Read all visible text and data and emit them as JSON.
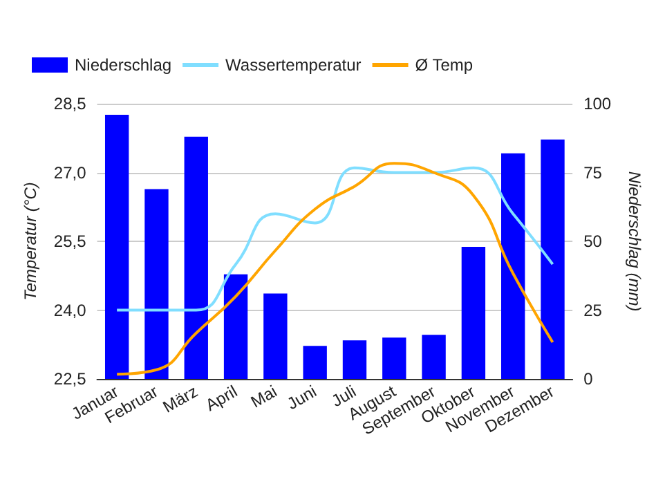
{
  "chart_data": {
    "type": "bar",
    "categories": [
      "Januar",
      "Februar",
      "März",
      "April",
      "Mai",
      "Juni",
      "Juli",
      "August",
      "September",
      "Oktober",
      "November",
      "Dezember"
    ],
    "series": [
      {
        "name": "Niederschlag",
        "axis": "y2",
        "color": "#0000ff",
        "values": [
          96,
          69,
          88,
          38,
          31,
          12,
          14,
          15,
          16,
          48,
          82,
          87
        ]
      },
      {
        "name": "Wassertemperatur",
        "type": "line",
        "color": "#80deff",
        "values": [
          24.0,
          24.0,
          24.0,
          25.0,
          26.1,
          25.9,
          27.1,
          27.0,
          27.0,
          27.1,
          26.1,
          25.0
        ]
      },
      {
        "name": "Ø Temp",
        "type": "line",
        "color": "#ffa500",
        "values": [
          22.6,
          22.7,
          23.5,
          24.3,
          25.3,
          26.2,
          26.7,
          27.2,
          27.0,
          26.5,
          24.8,
          23.3
        ]
      }
    ],
    "ylabel": "Temperatur (°C)",
    "y2label": "Niederschlag (mm)",
    "ylim": [
      22.5,
      28.5
    ],
    "yticks": [
      {
        "value": 22.5,
        "label": "22,5"
      },
      {
        "value": 24,
        "label": "24,0"
      },
      {
        "value": 25.5,
        "label": "25,5"
      },
      {
        "value": 27,
        "label": "27,0"
      },
      {
        "value": 28.5,
        "label": "28,5"
      }
    ],
    "y2lim": [
      0,
      100
    ],
    "y2ticks": [
      0,
      25,
      50,
      75,
      100
    ],
    "grid": "y",
    "legend": "top left",
    "marker": "none",
    "line_style": "solid"
  }
}
